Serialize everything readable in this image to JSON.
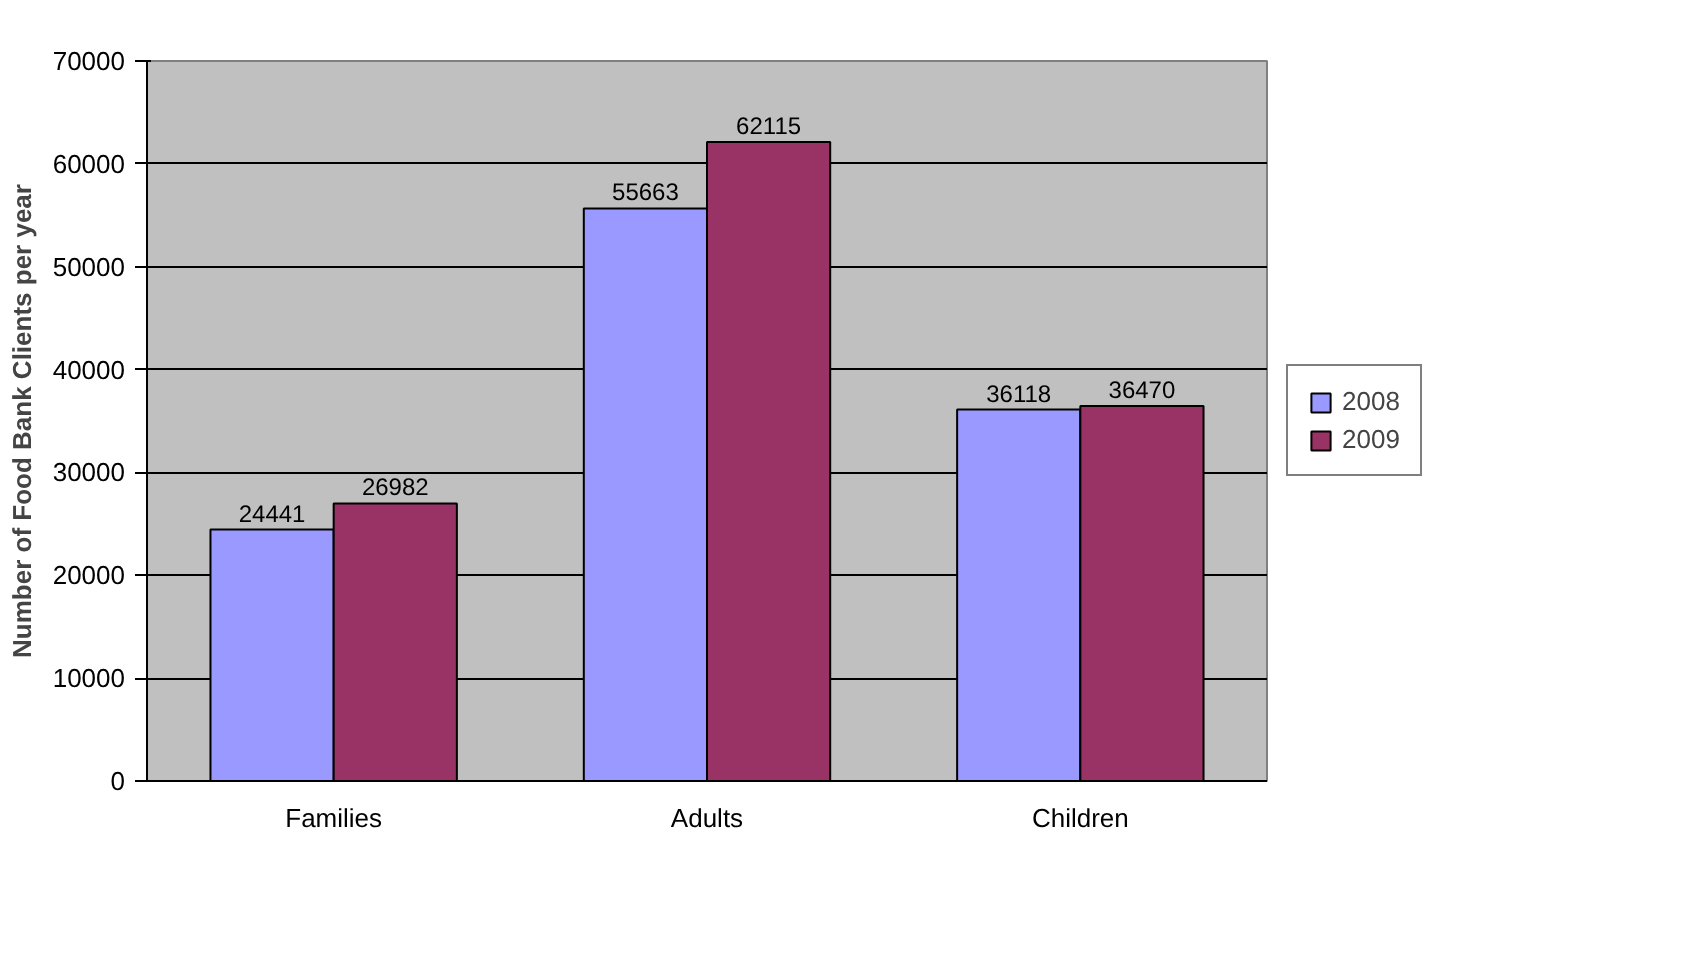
{
  "chart_data": {
    "type": "bar",
    "ylabel": "Number of Food Bank Clients per year",
    "categories": [
      "Families",
      "Adults",
      "Children"
    ],
    "series": [
      {
        "name": "2008",
        "color": "#9999ff",
        "values": [
          24441,
          55663,
          36118
        ]
      },
      {
        "name": "2009",
        "color": "#993366",
        "values": [
          26982,
          62115,
          36470
        ]
      }
    ],
    "ylim": [
      0,
      70000
    ],
    "yticks": [
      0,
      10000,
      20000,
      30000,
      40000,
      50000,
      60000,
      70000
    ],
    "grid": "y",
    "legend": "right",
    "data_labels": true
  }
}
